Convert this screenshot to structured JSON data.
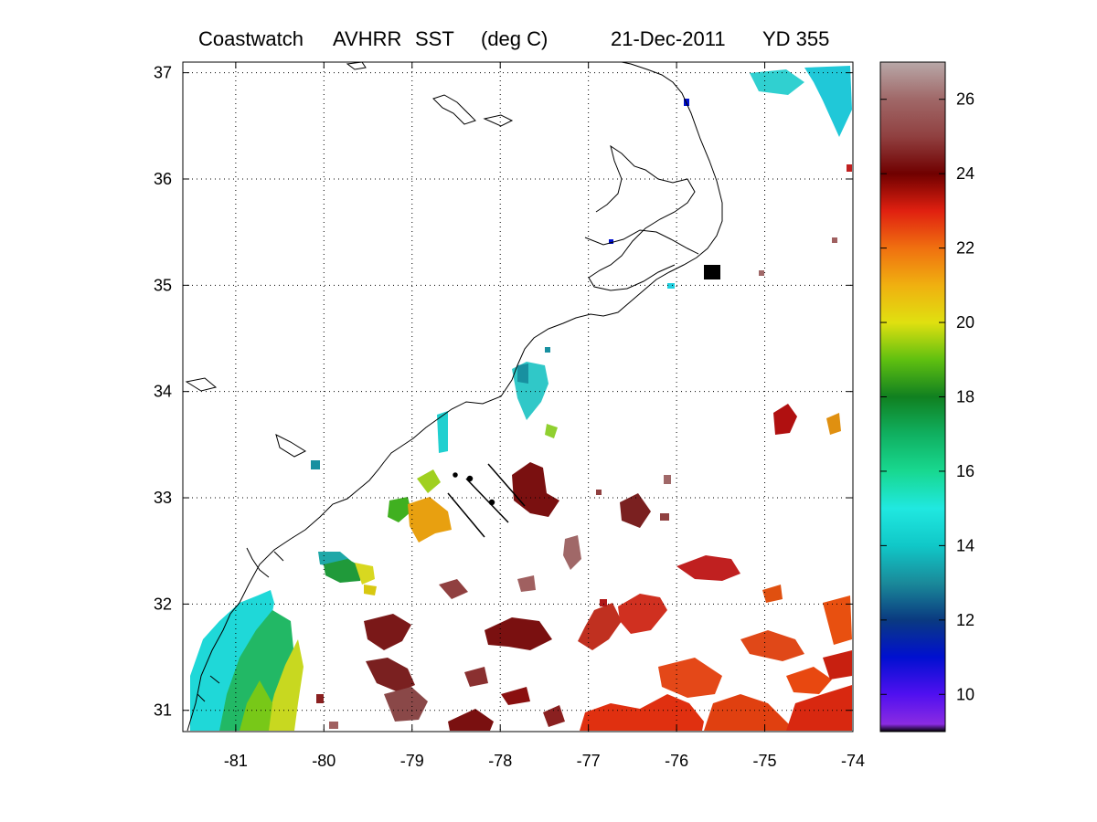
{
  "title": {
    "source": "Coastwatch",
    "sensor": "AVHRR",
    "product": "SST",
    "units": "(deg C)",
    "date": "21-Dec-2011",
    "yearday": "YD 355"
  },
  "map": {
    "lon_range": [
      -81.6,
      -74
    ],
    "lat_range": [
      30.8,
      37.1
    ],
    "lon_ticks": [
      -81,
      -80,
      -79,
      -78,
      -77,
      -76,
      -75,
      -74
    ],
    "lat_ticks": [
      31,
      32,
      33,
      34,
      35,
      36,
      37
    ],
    "grid": "dotted",
    "coastline_color": "#000000",
    "land_color": "#ffffff",
    "no_data_color": "#ffffff"
  },
  "colorbar": {
    "range": [
      9,
      27
    ],
    "ticks": [
      10,
      12,
      14,
      16,
      18,
      20,
      22,
      24,
      26
    ],
    "colormap": [
      {
        "v": 9,
        "c": "#000000"
      },
      {
        "v": 9.2,
        "c": "#8a2be2"
      },
      {
        "v": 10,
        "c": "#5010f0"
      },
      {
        "v": 11,
        "c": "#0010d0"
      },
      {
        "v": 12,
        "c": "#0a3a80"
      },
      {
        "v": 13,
        "c": "#1a8a9a"
      },
      {
        "v": 14,
        "c": "#10c8c8"
      },
      {
        "v": 15,
        "c": "#20e8e0"
      },
      {
        "v": 16,
        "c": "#18d890"
      },
      {
        "v": 17,
        "c": "#10b060"
      },
      {
        "v": 18,
        "c": "#108020"
      },
      {
        "v": 19,
        "c": "#60c010"
      },
      {
        "v": 20,
        "c": "#e0e010"
      },
      {
        "v": 21,
        "c": "#f0b010"
      },
      {
        "v": 22,
        "c": "#f07010"
      },
      {
        "v": 23,
        "c": "#e02010"
      },
      {
        "v": 24,
        "c": "#700000"
      },
      {
        "v": 25,
        "c": "#904040"
      },
      {
        "v": 26,
        "c": "#a06868"
      },
      {
        "v": 27,
        "c": "#b8a8a8"
      }
    ]
  }
}
